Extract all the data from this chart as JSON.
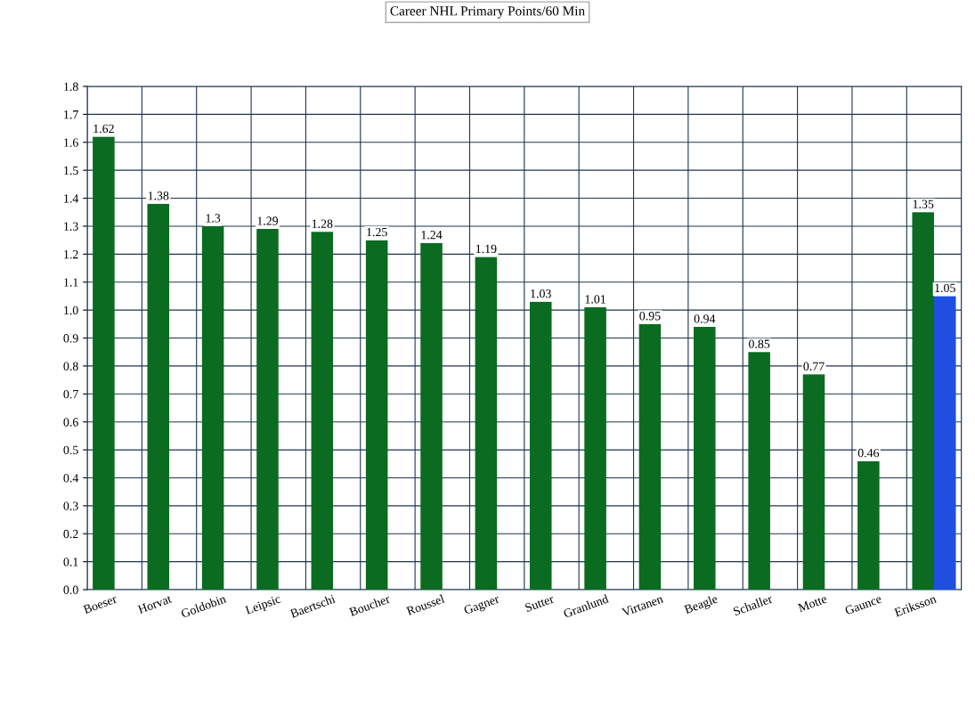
{
  "chart_data": {
    "type": "bar",
    "title": "Career NHL Primary Points/60 Min",
    "categories": [
      "Boeser",
      "Horvat",
      "Goldobin",
      "Leipsic",
      "Baertschi",
      "Boucher",
      "Roussel",
      "Gagner",
      "Sutter",
      "Granlund",
      "Virtanen",
      "Beagle",
      "Schaller",
      "Motte",
      "Gaunce",
      "Eriksson"
    ],
    "series": [
      {
        "color": "#0a6b21",
        "values": [
          1.62,
          1.38,
          1.3,
          1.29,
          1.28,
          1.25,
          1.24,
          1.19,
          1.03,
          1.01,
          0.95,
          0.94,
          0.85,
          0.77,
          0.46,
          1.35
        ]
      },
      {
        "color": "#1f4fe0",
        "values": [
          null,
          null,
          null,
          null,
          null,
          null,
          null,
          null,
          null,
          null,
          null,
          null,
          null,
          null,
          null,
          1.05
        ]
      }
    ],
    "ylim": [
      0,
      1.8
    ],
    "yticks": [
      {
        "value": 0,
        "label": "0.0"
      },
      0.1,
      0.2,
      0.3,
      0.4,
      0.5,
      0.6,
      0.7,
      0.8,
      0.9,
      {
        "value": 1,
        "label": "1.0"
      },
      1.1,
      1.2,
      1.3,
      1.4,
      1.5,
      1.6,
      1.7,
      1.8
    ],
    "grid": true,
    "data_labels": true,
    "legend": false
  }
}
